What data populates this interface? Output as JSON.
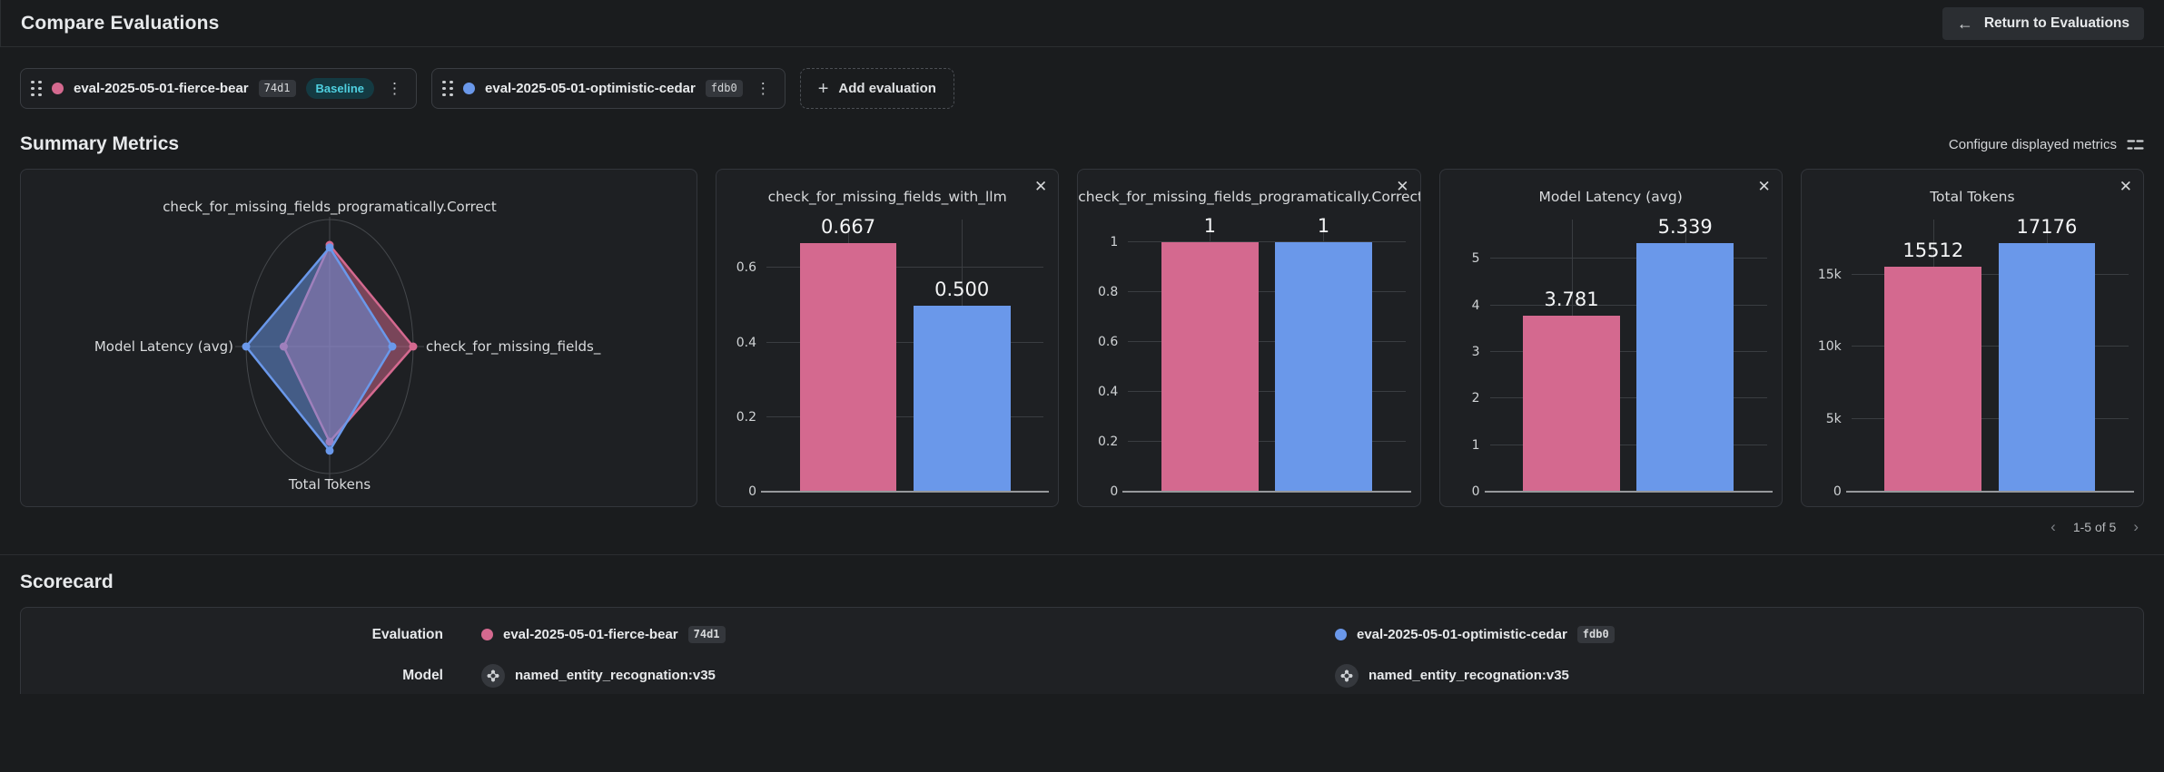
{
  "colors": {
    "pink": "#d4698f",
    "blue": "#6a98ea",
    "baseline_pill_bg": "#143a42",
    "baseline_pill_text": "#4fd0e0",
    "card_border": "#33363b",
    "gridline": "#3a3d41"
  },
  "icons": {
    "arrow_left": "←",
    "plus": "+",
    "kebab": "⋮",
    "close": "✕",
    "chevron_left": "‹",
    "chevron_right": "›"
  },
  "header": {
    "title": "Compare Evaluations",
    "return_button_label": "Return to Evaluations"
  },
  "evaluation_chips": [
    {
      "name": "eval-2025-05-01-fierce-bear",
      "version": "74d1",
      "baseline_label": "Baseline",
      "dot_color": "#d4698f"
    },
    {
      "name": "eval-2025-05-01-optimistic-cedar",
      "version": "fdb0",
      "dot_color": "#6a98ea"
    }
  ],
  "add_evaluation_label": "Add evaluation",
  "summary_metrics": {
    "title": "Summary Metrics",
    "configure_label": "Configure displayed metrics",
    "pagination_range": "1-5 of 5"
  },
  "scorecard": {
    "title": "Scorecard",
    "rows": [
      {
        "label": "Evaluation",
        "left": {
          "name": "eval-2025-05-01-fierce-bear",
          "version": "74d1",
          "dot_color": "#d4698f"
        },
        "right": {
          "name": "eval-2025-05-01-optimistic-cedar",
          "version": "fdb0",
          "dot_color": "#6a98ea"
        }
      },
      {
        "label": "Model",
        "left": {
          "name": "named_entity_recognation:v35"
        },
        "right": {
          "name": "named_entity_recognation:v35"
        }
      }
    ]
  },
  "chart_data": [
    {
      "type": "radar",
      "axes": [
        "check_for_missing_fields_programatically.Correct",
        "check_for_missing_fields_",
        "Total Tokens",
        "Model Latency (avg)"
      ],
      "axis_positions": [
        "top",
        "right",
        "bottom",
        "left"
      ],
      "series": [
        {
          "name": "eval-2025-05-01-fierce-bear",
          "color": "#d4698f",
          "values": [
            1,
            0.667,
            15512,
            3.781
          ],
          "display_fractions": [
            0.8,
            1.0,
            0.75,
            0.55
          ]
        },
        {
          "name": "eval-2025-05-01-optimistic-cedar",
          "color": "#6a98ea",
          "values": [
            1,
            0.5,
            17176,
            5.339
          ],
          "display_fractions": [
            0.78,
            0.75,
            0.82,
            1.0
          ]
        }
      ]
    },
    {
      "type": "bar",
      "title": "check_for_missing_fields_with_llm",
      "categories": [
        "eval-2025-05-01-fierce-bear",
        "eval-2025-05-01-optimistic-cedar"
      ],
      "values": [
        0.667,
        0.5
      ],
      "value_labels": [
        "0.667",
        "0.500"
      ],
      "yticks": [
        0,
        0.2,
        0.4,
        0.6
      ],
      "ytick_labels": [
        "0",
        "0.2",
        "0.4",
        "0.6"
      ],
      "ylim": [
        0,
        0.73
      ],
      "colors": [
        "#d4698f",
        "#6a98ea"
      ]
    },
    {
      "type": "bar",
      "title": "check_for_missing_fields_programatically.Correct",
      "categories": [
        "eval-2025-05-01-fierce-bear",
        "eval-2025-05-01-optimistic-cedar"
      ],
      "values": [
        1,
        1
      ],
      "value_labels": [
        "1",
        "1"
      ],
      "yticks": [
        0,
        0.2,
        0.4,
        0.6,
        0.8,
        1
      ],
      "ytick_labels": [
        "0",
        "0.2",
        "0.4",
        "0.6",
        "0.8",
        "1"
      ],
      "ylim": [
        0,
        1.09
      ],
      "colors": [
        "#d4698f",
        "#6a98ea"
      ]
    },
    {
      "type": "bar",
      "title": "Model Latency (avg)",
      "categories": [
        "eval-2025-05-01-fierce-bear",
        "eval-2025-05-01-optimistic-cedar"
      ],
      "values": [
        3.781,
        5.339
      ],
      "value_labels": [
        "3.781",
        "5.339"
      ],
      "yticks": [
        0,
        1,
        2,
        3,
        4,
        5
      ],
      "ytick_labels": [
        "0",
        "1",
        "2",
        "3",
        "4",
        "5"
      ],
      "ylim": [
        0,
        5.84
      ],
      "colors": [
        "#d4698f",
        "#6a98ea"
      ]
    },
    {
      "type": "bar",
      "title": "Total Tokens",
      "categories": [
        "eval-2025-05-01-fierce-bear",
        "eval-2025-05-01-optimistic-cedar"
      ],
      "values": [
        15512,
        17176
      ],
      "value_labels": [
        "15512",
        "17176"
      ],
      "yticks": [
        0,
        5000,
        10000,
        15000
      ],
      "ytick_labels": [
        "0",
        "5k",
        "10k",
        "15k"
      ],
      "ylim": [
        0,
        18800
      ],
      "colors": [
        "#d4698f",
        "#6a98ea"
      ]
    }
  ]
}
